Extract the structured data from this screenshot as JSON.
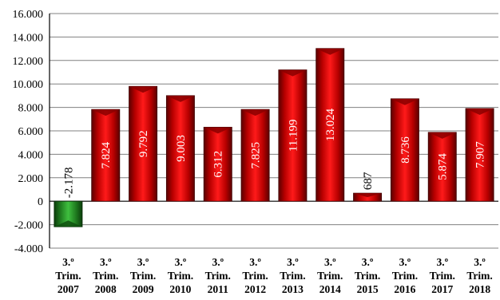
{
  "chart_data": {
    "type": "bar",
    "categories": [
      [
        "3.º",
        "Trim.",
        "2007"
      ],
      [
        "3.º",
        "Trim.",
        "2008"
      ],
      [
        "3.º",
        "Trim.",
        "2009"
      ],
      [
        "3.º",
        "Trim.",
        "2010"
      ],
      [
        "3.º",
        "Trim.",
        "2011"
      ],
      [
        "3.º",
        "Trim.",
        "2012"
      ],
      [
        "3.º",
        "Trim.",
        "2013"
      ],
      [
        "3.º",
        "Trim.",
        "2014"
      ],
      [
        "3.º",
        "Trim.",
        "2015"
      ],
      [
        "3.º",
        "Trim.",
        "2016"
      ],
      [
        "3.º",
        "Trim.",
        "2017"
      ],
      [
        "3.º",
        "Trim.",
        "2018"
      ]
    ],
    "values": [
      -2178,
      7824,
      9792,
      9003,
      6312,
      7825,
      11199,
      13024,
      687,
      8736,
      5874,
      7907
    ],
    "data_labels": [
      "-2.178",
      "7.824",
      "9.792",
      "9.003",
      "6.312",
      "7.825",
      "11.199",
      "13.024",
      "687",
      "8.736",
      "5.874",
      "7.907"
    ],
    "y_ticks": [
      -4000,
      -2000,
      0,
      2000,
      4000,
      6000,
      8000,
      10000,
      12000,
      14000,
      16000
    ],
    "y_tick_labels": [
      "-4.000",
      "-2.000",
      "0",
      "2.000",
      "4.000",
      "6.000",
      "8.000",
      "10.000",
      "12.000",
      "14.000",
      "16.000"
    ],
    "ylim": [
      -4000,
      16000
    ],
    "grid": true,
    "legend": "none",
    "colors": {
      "positive_bar": "#c00000",
      "negative_bar": "#1f7a1f",
      "grid": "#808080",
      "axis": "#000000"
    }
  }
}
